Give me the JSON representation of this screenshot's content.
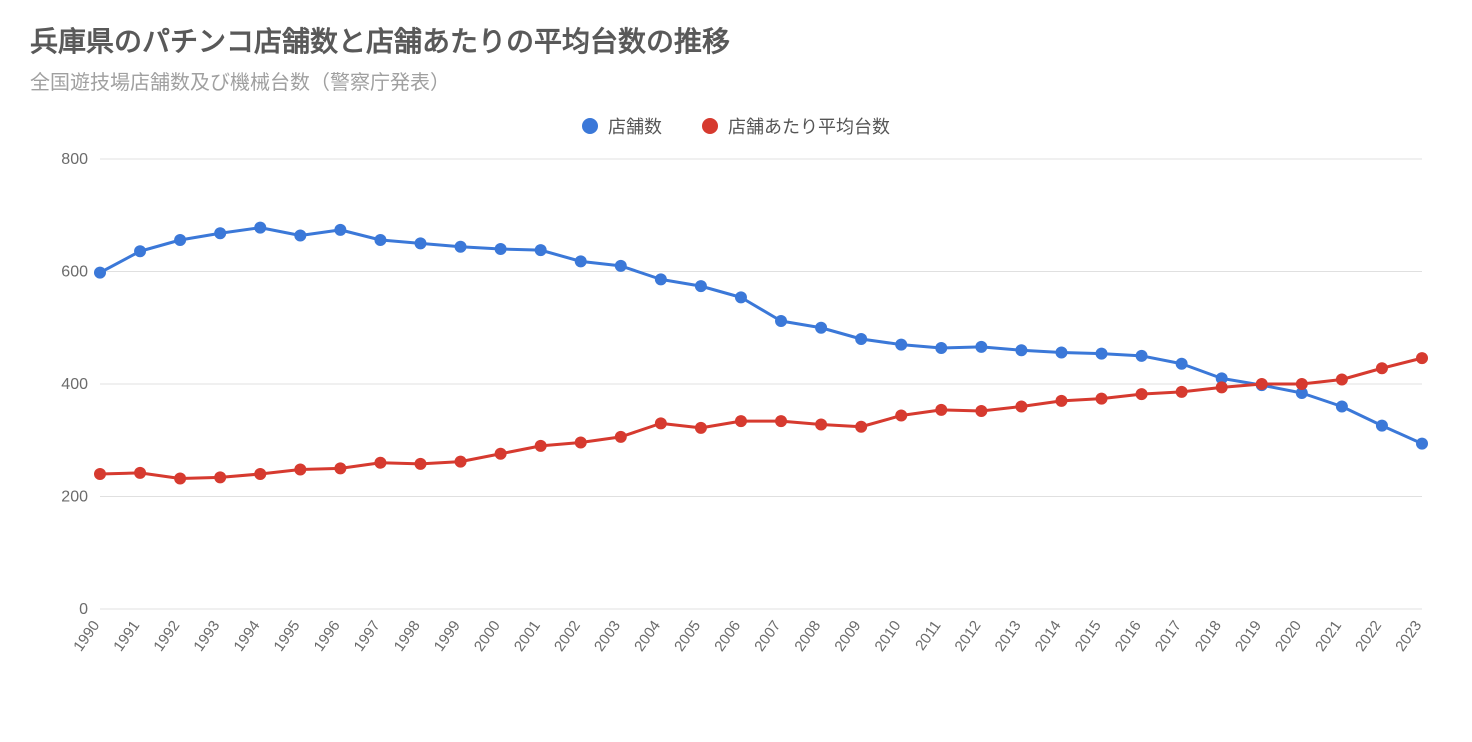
{
  "title": "兵庫県のパチンコ店舗数と店舗あたりの平均台数の推移",
  "subtitle": "全国遊技場店舗数及び機械台数（警察庁発表）",
  "legend": {
    "series1": "店舗数",
    "series2": "店舗あたり平均台数"
  },
  "chart": {
    "type": "line",
    "background_color": "#ffffff",
    "grid_color": "#e0e0e0",
    "axis_text_color": "#6b6b6b",
    "title_color": "#595959",
    "subtitle_color": "#a0a0a0",
    "title_fontsize": 28,
    "subtitle_fontsize": 20,
    "legend_fontsize": 18,
    "tick_fontsize": 16,
    "ylim": [
      0,
      800
    ],
    "ytick_step": 200,
    "yticks": [
      0,
      200,
      400,
      600,
      800
    ],
    "x_labels_rotation_deg": -55,
    "line_width": 3,
    "marker_radius": 6,
    "marker_style": "circle",
    "years": [
      "1990",
      "1991",
      "1992",
      "1993",
      "1994",
      "1995",
      "1996",
      "1997",
      "1998",
      "1999",
      "2000",
      "2001",
      "2002",
      "2003",
      "2004",
      "2005",
      "2006",
      "2007",
      "2008",
      "2009",
      "2010",
      "2011",
      "2012",
      "2013",
      "2014",
      "2015",
      "2016",
      "2017",
      "2018",
      "2019",
      "2020",
      "2021",
      "2022",
      "2023"
    ],
    "series": [
      {
        "key": "stores",
        "label": "店舗数",
        "color": "#3b78d8",
        "values": [
          598,
          636,
          656,
          668,
          678,
          664,
          674,
          656,
          650,
          644,
          640,
          638,
          618,
          610,
          586,
          574,
          554,
          512,
          500,
          480,
          470,
          464,
          466,
          460,
          456,
          454,
          450,
          436,
          410,
          398,
          384,
          360,
          326,
          294
        ]
      },
      {
        "key": "avg_machines",
        "label": "店舗あたり平均台数",
        "color": "#d63a2f",
        "values": [
          240,
          242,
          232,
          234,
          240,
          248,
          250,
          260,
          258,
          262,
          276,
          290,
          296,
          306,
          330,
          322,
          334,
          334,
          328,
          324,
          344,
          354,
          352,
          360,
          370,
          374,
          382,
          386,
          394,
          400,
          400,
          408,
          428,
          446
        ]
      }
    ]
  }
}
